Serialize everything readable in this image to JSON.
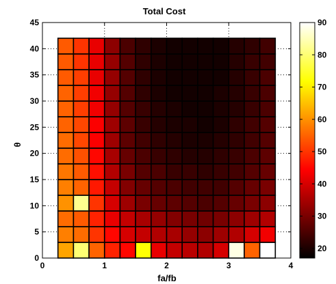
{
  "chart_data": {
    "type": "heatmap",
    "title": "Total Cost",
    "xlabel": "fa/fb",
    "ylabel": "θ",
    "xlim": [
      0,
      4
    ],
    "ylim": [
      0,
      45
    ],
    "x_ticks": [
      "0",
      "1",
      "2",
      "3",
      "4"
    ],
    "y_ticks": [
      "0",
      "5",
      "10",
      "15",
      "20",
      "25",
      "30",
      "35",
      "40",
      "45"
    ],
    "grid": true,
    "x_centers": [
      0.375,
      0.625,
      0.875,
      1.125,
      1.375,
      1.625,
      1.875,
      2.125,
      2.375,
      2.625,
      2.875,
      3.125,
      3.375,
      3.625
    ],
    "y_centers": [
      1.5,
      4.5,
      7.5,
      10.5,
      13.5,
      16.5,
      19.5,
      22.5,
      25.5,
      28.5,
      31.5,
      34.5,
      37.5,
      40.5
    ],
    "cell_size": [
      0.25,
      3
    ],
    "z": [
      [
        62,
        80,
        55,
        48,
        45,
        72,
        42,
        38,
        37,
        36,
        40,
        88,
        55,
        90
      ],
      [
        58,
        56,
        50,
        45,
        40,
        38,
        36,
        35,
        33,
        32,
        34,
        36,
        40,
        43
      ],
      [
        56,
        54,
        48,
        42,
        38,
        35,
        33,
        31,
        30,
        29,
        30,
        32,
        34,
        36
      ],
      [
        60,
        82,
        50,
        40,
        34,
        30,
        28,
        27,
        26,
        25,
        26,
        28,
        30,
        32
      ],
      [
        58,
        55,
        47,
        38,
        31,
        28,
        26,
        25,
        24,
        24,
        24,
        26,
        28,
        30
      ],
      [
        57,
        54,
        46,
        36,
        30,
        26,
        25,
        23,
        23,
        22,
        23,
        24,
        26,
        28
      ],
      [
        56,
        53,
        45,
        35,
        28,
        25,
        23,
        22,
        21,
        21,
        22,
        23,
        25,
        27
      ],
      [
        56,
        52,
        44,
        34,
        27,
        24,
        22,
        21,
        20,
        20,
        21,
        22,
        24,
        26
      ],
      [
        55,
        52,
        44,
        34,
        27,
        23,
        21,
        20,
        20,
        19,
        20,
        22,
        24,
        26
      ],
      [
        55,
        51,
        43,
        33,
        26,
        23,
        21,
        20,
        19,
        19,
        20,
        21,
        23,
        25
      ],
      [
        55,
        51,
        43,
        33,
        26,
        22,
        20,
        19,
        19,
        19,
        20,
        21,
        23,
        25
      ],
      [
        54,
        51,
        42,
        33,
        26,
        22,
        20,
        19,
        19,
        19,
        19,
        21,
        23,
        25
      ],
      [
        54,
        50,
        42,
        33,
        26,
        22,
        20,
        19,
        19,
        19,
        19,
        21,
        23,
        24
      ],
      [
        54,
        50,
        42,
        32,
        25,
        22,
        20,
        19,
        19,
        19,
        19,
        21,
        22,
        24
      ]
    ],
    "colorbar": {
      "colormap": "hot",
      "range": [
        17,
        90
      ],
      "ticks": [
        "20",
        "30",
        "40",
        "50",
        "60",
        "70",
        "80",
        "90"
      ]
    }
  }
}
